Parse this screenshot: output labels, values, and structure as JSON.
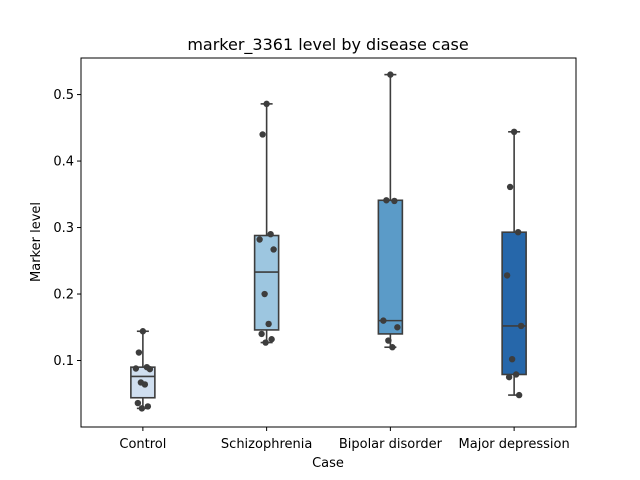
{
  "chart_data": {
    "type": "box",
    "title": "marker_3361 level by disease case",
    "xlabel": "Case",
    "ylabel": "Marker level",
    "ylim": [
      0.0,
      0.555
    ],
    "yticks": [
      0.1,
      0.2,
      0.3,
      0.4,
      0.5
    ],
    "ytick_labels": [
      "0.1",
      "0.2",
      "0.3",
      "0.4",
      "0.5"
    ],
    "categories": [
      "Control",
      "Schizophrenia",
      "Bipolar disorder",
      "Major depression"
    ],
    "colors": [
      "#d0dff0",
      "#9dc6e0",
      "#5b9bc8",
      "#2667aa"
    ],
    "grid": false,
    "legend": "none",
    "boxes": [
      {
        "category": "Control",
        "whisker_low": 0.028,
        "q1": 0.044,
        "median": 0.076,
        "q3": 0.09,
        "whisker_high": 0.144,
        "points": [
          0.144,
          0.112,
          0.09,
          0.088,
          0.087,
          0.067,
          0.064,
          0.036,
          0.031,
          0.028
        ]
      },
      {
        "category": "Schizophrenia",
        "whisker_low": 0.127,
        "q1": 0.146,
        "median": 0.233,
        "q3": 0.288,
        "whisker_high": 0.486,
        "points": [
          0.486,
          0.44,
          0.29,
          0.282,
          0.267,
          0.2,
          0.155,
          0.14,
          0.132,
          0.127
        ]
      },
      {
        "category": "Bipolar disorder",
        "whisker_low": 0.12,
        "q1": 0.14,
        "median": 0.16,
        "q3": 0.341,
        "whisker_high": 0.53,
        "points": [
          0.53,
          0.341,
          0.34,
          0.16,
          0.15,
          0.13,
          0.12
        ]
      },
      {
        "category": "Major depression",
        "whisker_low": 0.048,
        "q1": 0.079,
        "median": 0.152,
        "q3": 0.293,
        "whisker_high": 0.444,
        "points": [
          0.444,
          0.361,
          0.293,
          0.228,
          0.152,
          0.102,
          0.079,
          0.075,
          0.048
        ]
      }
    ]
  }
}
